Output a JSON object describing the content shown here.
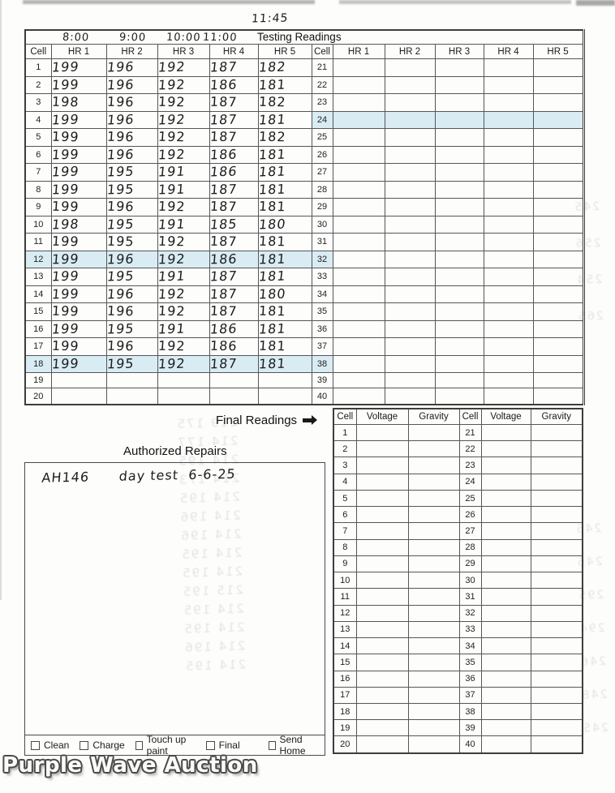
{
  "scan": {
    "handwritten_time_note": "11:45",
    "handwritten_times": [
      "8:00",
      "9:00",
      "10:00",
      "11:00"
    ]
  },
  "labels": {
    "final_readings": "Final Readings",
    "authorized_repairs": "Authorized Repairs",
    "watermark": "Purple Wave Auction"
  },
  "testing_table": {
    "title": "Testing Readings",
    "col_headers": [
      "Cell",
      "HR 1",
      "HR 2",
      "HR 3",
      "HR 4",
      "HR 5",
      "Cell",
      "HR 1",
      "HR 2",
      "HR 3",
      "HR 4",
      "HR 5"
    ],
    "left_rows": [
      {
        "cell": "1",
        "hr": [
          "199",
          "196",
          "192",
          "187",
          "182"
        ],
        "highlight": false
      },
      {
        "cell": "2",
        "hr": [
          "199",
          "196",
          "192",
          "186",
          "181"
        ],
        "highlight": false
      },
      {
        "cell": "3",
        "hr": [
          "198",
          "196",
          "192",
          "187",
          "182"
        ],
        "highlight": false
      },
      {
        "cell": "4",
        "hr": [
          "199",
          "196",
          "192",
          "187",
          "181"
        ],
        "highlight": false
      },
      {
        "cell": "5",
        "hr": [
          "199",
          "196",
          "192",
          "187",
          "182"
        ],
        "highlight": false
      },
      {
        "cell": "6",
        "hr": [
          "199",
          "196",
          "192",
          "186",
          "181"
        ],
        "highlight": false
      },
      {
        "cell": "7",
        "hr": [
          "199",
          "195",
          "191",
          "186",
          "181"
        ],
        "highlight": false
      },
      {
        "cell": "8",
        "hr": [
          "199",
          "195",
          "191",
          "187",
          "181"
        ],
        "highlight": false
      },
      {
        "cell": "9",
        "hr": [
          "199",
          "196",
          "192",
          "187",
          "181"
        ],
        "highlight": false
      },
      {
        "cell": "10",
        "hr": [
          "198",
          "195",
          "191",
          "185",
          "180"
        ],
        "highlight": false
      },
      {
        "cell": "11",
        "hr": [
          "199",
          "195",
          "192",
          "187",
          "181"
        ],
        "highlight": false
      },
      {
        "cell": "12",
        "hr": [
          "199",
          "196",
          "192",
          "186",
          "181"
        ],
        "highlight": true
      },
      {
        "cell": "13",
        "hr": [
          "199",
          "195",
          "191",
          "187",
          "181"
        ],
        "highlight": false
      },
      {
        "cell": "14",
        "hr": [
          "199",
          "196",
          "192",
          "187",
          "180"
        ],
        "highlight": false
      },
      {
        "cell": "15",
        "hr": [
          "199",
          "196",
          "192",
          "187",
          "181"
        ],
        "highlight": false
      },
      {
        "cell": "16",
        "hr": [
          "199",
          "195",
          "191",
          "186",
          "181"
        ],
        "highlight": false
      },
      {
        "cell": "17",
        "hr": [
          "199",
          "196",
          "192",
          "186",
          "181"
        ],
        "highlight": false
      },
      {
        "cell": "18",
        "hr": [
          "199",
          "195",
          "192",
          "187",
          "181"
        ],
        "highlight": true
      },
      {
        "cell": "19",
        "hr": [
          "",
          "",
          "",
          "",
          ""
        ],
        "highlight": false
      },
      {
        "cell": "20",
        "hr": [
          "",
          "",
          "",
          "",
          ""
        ],
        "highlight": false
      }
    ],
    "right_rows": [
      {
        "cell": "21",
        "highlight": false
      },
      {
        "cell": "22",
        "highlight": false
      },
      {
        "cell": "23",
        "highlight": false
      },
      {
        "cell": "24",
        "highlight": true
      },
      {
        "cell": "25",
        "highlight": false
      },
      {
        "cell": "26",
        "highlight": false
      },
      {
        "cell": "27",
        "highlight": false
      },
      {
        "cell": "28",
        "highlight": false
      },
      {
        "cell": "29",
        "highlight": false
      },
      {
        "cell": "30",
        "highlight": false
      },
      {
        "cell": "31",
        "highlight": false
      },
      {
        "cell": "32",
        "highlight": false
      },
      {
        "cell": "33",
        "highlight": false
      },
      {
        "cell": "34",
        "highlight": false
      },
      {
        "cell": "35",
        "highlight": false
      },
      {
        "cell": "36",
        "highlight": false
      },
      {
        "cell": "37",
        "highlight": false
      },
      {
        "cell": "38",
        "highlight": false
      },
      {
        "cell": "39",
        "highlight": false
      },
      {
        "cell": "40",
        "highlight": false
      }
    ]
  },
  "final_table": {
    "col_headers": [
      "Cell",
      "Voltage",
      "Gravity",
      "Cell",
      "Voltage",
      "Gravity"
    ],
    "left_cells": [
      "1",
      "2",
      "3",
      "4",
      "5",
      "6",
      "7",
      "8",
      "9",
      "10",
      "11",
      "12",
      "13",
      "14",
      "15",
      "16",
      "17",
      "18",
      "19",
      "20"
    ],
    "right_cells": [
      "21",
      "22",
      "23",
      "24",
      "25",
      "26",
      "27",
      "28",
      "29",
      "30",
      "31",
      "32",
      "33",
      "34",
      "35",
      "36",
      "37",
      "38",
      "39",
      "40"
    ]
  },
  "authorized_repairs": {
    "note": "AH146      day test  6-6-25"
  },
  "checkboxes": [
    {
      "label": "Clean",
      "checked": false
    },
    {
      "label": "Charge",
      "checked": false
    },
    {
      "label": "Touch up paint",
      "checked": false
    },
    {
      "label": "Final",
      "checked": false
    },
    {
      "label": "Send Home",
      "checked": false
    }
  ],
  "artifacts": {
    "description": "illegible mirrored ink bleeding through from reverse side of page",
    "ghost_repairs_lines": [
      "219  175",
      "214  177",
      "214  195",
      "214  173",
      "214  195",
      "214  196",
      "214  196",
      "214  195",
      "214  195",
      "215  195",
      "214  195",
      "214  195",
      "214  196",
      "214  195"
    ],
    "ghost_upper_right_lines": [
      "245",
      "256",
      "254",
      "265"
    ],
    "ghost_lower_right_lines": [
      "245",
      "246",
      "295",
      "294",
      "246",
      "248",
      "245"
    ]
  }
}
